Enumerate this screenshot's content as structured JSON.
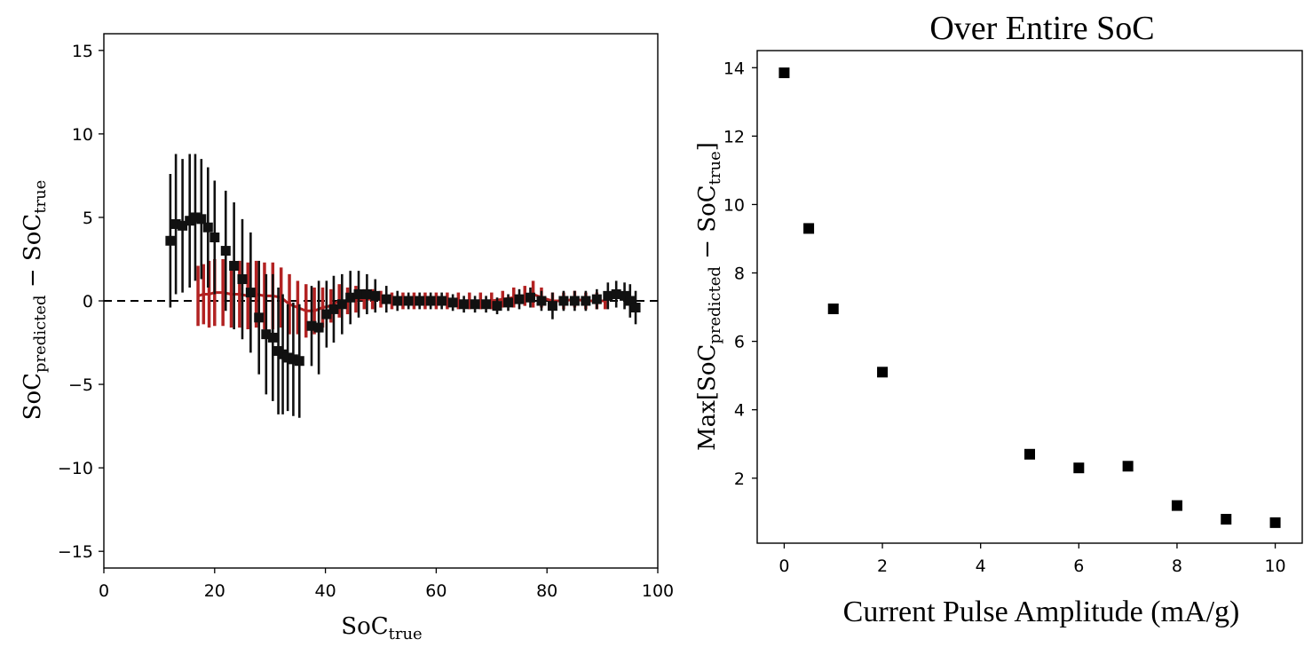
{
  "chart_data": [
    {
      "type": "scatter",
      "title": "",
      "xlabel": "SoC",
      "xlabel_sub": "true",
      "ylabel_parts": [
        "SoC",
        "predicted",
        " − SoC",
        "true"
      ],
      "xlim": [
        0,
        100
      ],
      "ylim": [
        -16,
        16
      ],
      "xticks": [
        "0",
        "20",
        "40",
        "60",
        "80",
        "100"
      ],
      "yticks": [
        "15",
        "10",
        "5",
        "0",
        "−5",
        "−10",
        "−15"
      ],
      "grid": false,
      "reference_line": {
        "y": 0,
        "style": "dashed",
        "color": "#000000"
      },
      "colors": {
        "black_series": "#111111",
        "red_series": "#b22222"
      },
      "series": [
        {
          "marker": "square",
          "color": "#111111",
          "points": [
            {
              "x": 12.0,
              "y": 3.6,
              "err": 4.0
            },
            {
              "x": 13.0,
              "y": 4.6,
              "err": 4.2
            },
            {
              "x": 14.2,
              "y": 4.5,
              "err": 4.0
            },
            {
              "x": 15.5,
              "y": 4.8,
              "err": 4.0
            },
            {
              "x": 16.5,
              "y": 5.0,
              "err": 3.8
            },
            {
              "x": 17.6,
              "y": 4.9,
              "err": 3.6
            },
            {
              "x": 18.8,
              "y": 4.4,
              "err": 3.6
            },
            {
              "x": 20.0,
              "y": 3.8,
              "err": 3.4
            },
            {
              "x": 22.0,
              "y": 3.0,
              "err": 3.6
            },
            {
              "x": 23.5,
              "y": 2.1,
              "err": 3.8
            },
            {
              "x": 25.0,
              "y": 1.3,
              "err": 3.6
            },
            {
              "x": 26.5,
              "y": 0.5,
              "err": 3.6
            },
            {
              "x": 28.0,
              "y": -1.0,
              "err": 3.4
            },
            {
              "x": 29.3,
              "y": -2.0,
              "err": 3.6
            },
            {
              "x": 30.5,
              "y": -2.2,
              "err": 3.8
            },
            {
              "x": 31.5,
              "y": -3.0,
              "err": 3.8
            },
            {
              "x": 32.3,
              "y": -3.2,
              "err": 3.6
            },
            {
              "x": 33.2,
              "y": -3.4,
              "err": 3.2
            },
            {
              "x": 34.2,
              "y": -3.5,
              "err": 3.4
            },
            {
              "x": 35.3,
              "y": -3.6,
              "err": 3.4
            },
            {
              "x": 37.5,
              "y": -1.5,
              "err": 2.4
            },
            {
              "x": 38.8,
              "y": -1.6,
              "err": 2.8
            },
            {
              "x": 40.2,
              "y": -0.8,
              "err": 2.0
            },
            {
              "x": 41.5,
              "y": -0.5,
              "err": 2.0
            },
            {
              "x": 43.0,
              "y": -0.2,
              "err": 1.8
            },
            {
              "x": 44.5,
              "y": 0.2,
              "err": 1.6
            },
            {
              "x": 46.0,
              "y": 0.4,
              "err": 1.4
            },
            {
              "x": 47.5,
              "y": 0.4,
              "err": 1.2
            },
            {
              "x": 49.0,
              "y": 0.3,
              "err": 1.0
            },
            {
              "x": 51.0,
              "y": 0.1,
              "err": 0.8
            },
            {
              "x": 53.0,
              "y": 0.0,
              "err": 0.6
            },
            {
              "x": 55.0,
              "y": 0.0,
              "err": 0.5
            },
            {
              "x": 57.0,
              "y": 0.0,
              "err": 0.5
            },
            {
              "x": 59.0,
              "y": 0.0,
              "err": 0.5
            },
            {
              "x": 61.0,
              "y": 0.0,
              "err": 0.5
            },
            {
              "x": 63.0,
              "y": -0.1,
              "err": 0.5
            },
            {
              "x": 65.0,
              "y": -0.2,
              "err": 0.5
            },
            {
              "x": 67.0,
              "y": -0.2,
              "err": 0.5
            },
            {
              "x": 69.0,
              "y": -0.2,
              "err": 0.5
            },
            {
              "x": 71.0,
              "y": -0.3,
              "err": 0.5
            },
            {
              "x": 73.0,
              "y": -0.1,
              "err": 0.5
            },
            {
              "x": 75.0,
              "y": 0.1,
              "err": 0.6
            },
            {
              "x": 77.0,
              "y": 0.2,
              "err": 0.6
            },
            {
              "x": 79.0,
              "y": 0.0,
              "err": 0.6
            },
            {
              "x": 81.0,
              "y": -0.3,
              "err": 0.8
            },
            {
              "x": 83.0,
              "y": 0.0,
              "err": 0.6
            },
            {
              "x": 85.0,
              "y": 0.0,
              "err": 0.6
            },
            {
              "x": 87.0,
              "y": 0.0,
              "err": 0.6
            },
            {
              "x": 89.0,
              "y": 0.1,
              "err": 0.6
            },
            {
              "x": 91.0,
              "y": 0.3,
              "err": 0.8
            },
            {
              "x": 92.5,
              "y": 0.4,
              "err": 0.8
            },
            {
              "x": 94.0,
              "y": 0.3,
              "err": 0.8
            },
            {
              "x": 95.0,
              "y": 0.0,
              "err": 1.0
            },
            {
              "x": 96.0,
              "y": -0.4,
              "err": 1.0
            }
          ]
        },
        {
          "marker": "none",
          "color": "#b22222",
          "points": [
            {
              "x": 17.0,
              "y": 0.3,
              "err": 1.8
            },
            {
              "x": 18.0,
              "y": 0.4,
              "err": 1.8
            },
            {
              "x": 19.0,
              "y": 0.4,
              "err": 2.0
            },
            {
              "x": 20.0,
              "y": 0.5,
              "err": 2.0
            },
            {
              "x": 21.5,
              "y": 0.5,
              "err": 2.0
            },
            {
              "x": 23.0,
              "y": 0.4,
              "err": 2.0
            },
            {
              "x": 24.5,
              "y": 0.4,
              "err": 2.0
            },
            {
              "x": 26.0,
              "y": 0.3,
              "err": 2.0
            },
            {
              "x": 27.5,
              "y": 0.4,
              "err": 2.0
            },
            {
              "x": 29.0,
              "y": 0.3,
              "err": 2.0
            },
            {
              "x": 30.5,
              "y": 0.3,
              "err": 2.0
            },
            {
              "x": 32.0,
              "y": 0.2,
              "err": 1.8
            },
            {
              "x": 33.5,
              "y": -0.2,
              "err": 1.8
            },
            {
              "x": 35.0,
              "y": -0.4,
              "err": 1.6
            },
            {
              "x": 36.5,
              "y": -0.6,
              "err": 1.6
            },
            {
              "x": 38.0,
              "y": -0.6,
              "err": 1.4
            },
            {
              "x": 39.5,
              "y": -0.4,
              "err": 1.2
            },
            {
              "x": 41.0,
              "y": -0.3,
              "err": 1.0
            },
            {
              "x": 42.5,
              "y": 0.0,
              "err": 1.0
            },
            {
              "x": 44.0,
              "y": 0.0,
              "err": 0.8
            },
            {
              "x": 45.5,
              "y": 0.1,
              "err": 0.8
            },
            {
              "x": 47.0,
              "y": 0.1,
              "err": 0.6
            },
            {
              "x": 48.5,
              "y": 0.1,
              "err": 0.6
            },
            {
              "x": 50.0,
              "y": 0.1,
              "err": 0.5
            },
            {
              "x": 52.0,
              "y": 0.0,
              "err": 0.5
            },
            {
              "x": 54.0,
              "y": 0.0,
              "err": 0.5
            },
            {
              "x": 56.0,
              "y": 0.0,
              "err": 0.5
            },
            {
              "x": 58.0,
              "y": 0.0,
              "err": 0.5
            },
            {
              "x": 60.0,
              "y": 0.0,
              "err": 0.5
            },
            {
              "x": 62.0,
              "y": 0.0,
              "err": 0.5
            },
            {
              "x": 64.0,
              "y": 0.0,
              "err": 0.5
            },
            {
              "x": 66.0,
              "y": 0.0,
              "err": 0.5
            },
            {
              "x": 68.0,
              "y": 0.0,
              "err": 0.5
            },
            {
              "x": 70.0,
              "y": 0.0,
              "err": 0.5
            },
            {
              "x": 72.0,
              "y": 0.1,
              "err": 0.5
            },
            {
              "x": 74.0,
              "y": 0.2,
              "err": 0.6
            },
            {
              "x": 76.0,
              "y": 0.3,
              "err": 0.6
            },
            {
              "x": 77.5,
              "y": 0.4,
              "err": 0.8
            },
            {
              "x": 79.0,
              "y": 0.2,
              "err": 0.6
            },
            {
              "x": 81.0,
              "y": 0.0,
              "err": 0.5
            },
            {
              "x": 83.0,
              "y": 0.0,
              "err": 0.5
            },
            {
              "x": 85.0,
              "y": 0.1,
              "err": 0.5
            },
            {
              "x": 87.0,
              "y": 0.0,
              "err": 0.5
            },
            {
              "x": 89.0,
              "y": 0.0,
              "err": 0.5
            },
            {
              "x": 90.5,
              "y": 0.0,
              "err": 0.5
            }
          ]
        }
      ]
    },
    {
      "type": "scatter",
      "title": "Over Entire SoC",
      "xlabel": "Current Pulse Amplitude (mA/g)",
      "ylabel_parts": [
        "Max[SoC",
        "predicted",
        " − SoC",
        "true",
        "]"
      ],
      "xlim": [
        -0.55,
        10.55
      ],
      "ylim": [
        0.1,
        14.5
      ],
      "xticks": [
        "0",
        "2",
        "4",
        "6",
        "8",
        "10"
      ],
      "yticks": [
        "14",
        "12",
        "10",
        "8",
        "6",
        "4",
        "2"
      ],
      "grid": false,
      "series": [
        {
          "marker": "square",
          "color": "#000000",
          "x": [
            0,
            0.5,
            1,
            2,
            5,
            6,
            7,
            8,
            9,
            10
          ],
          "y": [
            13.85,
            9.3,
            6.95,
            5.1,
            2.7,
            2.3,
            2.35,
            1.2,
            0.8,
            0.7
          ]
        }
      ]
    }
  ]
}
